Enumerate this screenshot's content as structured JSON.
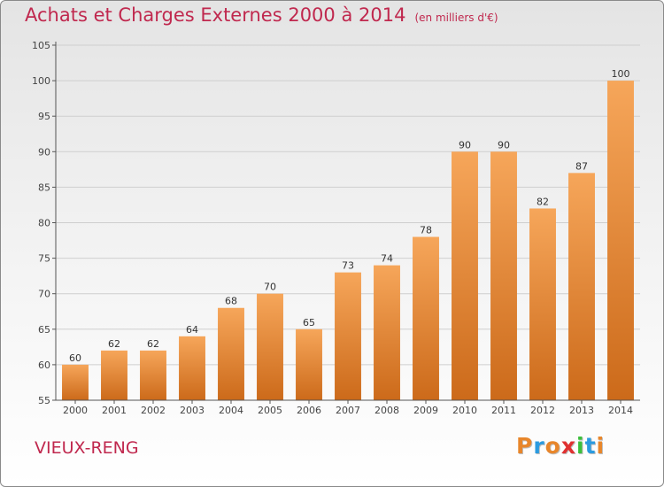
{
  "title": "Achats et Charges Externes 2000 à 2014",
  "unit": "(en milliers d'€)",
  "location": "VIEUX-RENG",
  "logo": {
    "text": "Proxiti",
    "colors": [
      "#e8862b",
      "#2b9be0",
      "#e8862b",
      "#e03131",
      "#3bbf3b",
      "#2b9be0",
      "#e8862b"
    ]
  },
  "colors": {
    "title": "#c0284e",
    "bar_light": "#f6a65a",
    "bar_dark": "#cc6a1a",
    "axis": "#555555",
    "grid": "#cfcfcf"
  },
  "chart_data": {
    "type": "bar",
    "categories": [
      "2000",
      "2001",
      "2002",
      "2003",
      "2004",
      "2005",
      "2006",
      "2007",
      "2008",
      "2009",
      "2010",
      "2011",
      "2012",
      "2013",
      "2014"
    ],
    "values": [
      60,
      62,
      62,
      64,
      68,
      70,
      65,
      73,
      74,
      78,
      90,
      90,
      82,
      87,
      100
    ],
    "ylim": [
      55,
      105
    ],
    "yticks": [
      55,
      60,
      65,
      70,
      75,
      80,
      85,
      90,
      95,
      100,
      105
    ],
    "grid": true,
    "xlabel": "",
    "ylabel": ""
  }
}
